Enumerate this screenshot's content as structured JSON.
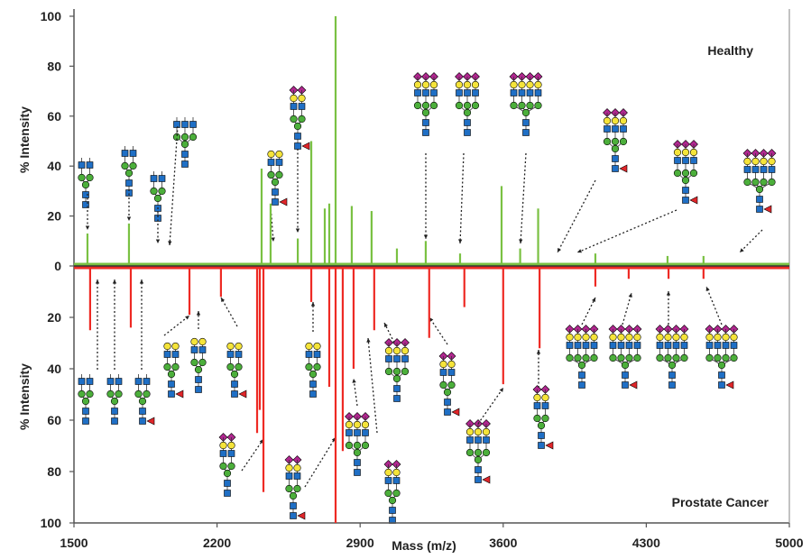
{
  "chart_data": {
    "type": "mirror",
    "xlabel": "Mass (m/z)",
    "xlim": [
      1500,
      5000
    ],
    "xticks": [
      1500,
      2200,
      2900,
      3600,
      4300,
      5000
    ],
    "series": [
      {
        "name": "Healthy",
        "color": "#7ac143",
        "ylabel": "% Intensity",
        "ylim": [
          0,
          100
        ],
        "yticks": [
          0,
          20,
          40,
          60,
          80,
          100
        ],
        "x": [
          1566,
          1769,
          2418,
          2462,
          2595,
          2661,
          2727,
          2749,
          2780,
          2859,
          2956,
          3080,
          3221,
          3389,
          3592,
          3683,
          3771,
          4051,
          4404,
          4580
        ],
        "values": [
          13,
          17,
          39,
          25,
          11,
          50,
          23,
          25,
          100,
          24,
          22,
          7,
          10,
          5,
          32,
          7,
          23,
          5,
          4,
          4
        ]
      },
      {
        "name": "Prostate Cancer",
        "color": "#ee2a24",
        "ylabel": "% Intensity",
        "ylim": [
          0,
          100
        ],
        "yticks": [
          20,
          40,
          60,
          80,
          100
        ],
        "x": [
          1579,
          1778,
          2065,
          2219,
          2396,
          2409,
          2427,
          2661,
          2749,
          2780,
          2815,
          2868,
          2969,
          3238,
          3410,
          3600,
          3778,
          4051,
          4214,
          4409,
          4580
        ],
        "values": [
          25,
          24,
          19,
          12,
          65,
          56,
          88,
          14,
          47,
          100,
          72,
          40,
          25,
          28,
          16,
          46,
          32,
          8,
          5,
          5,
          5
        ]
      }
    ]
  }
}
